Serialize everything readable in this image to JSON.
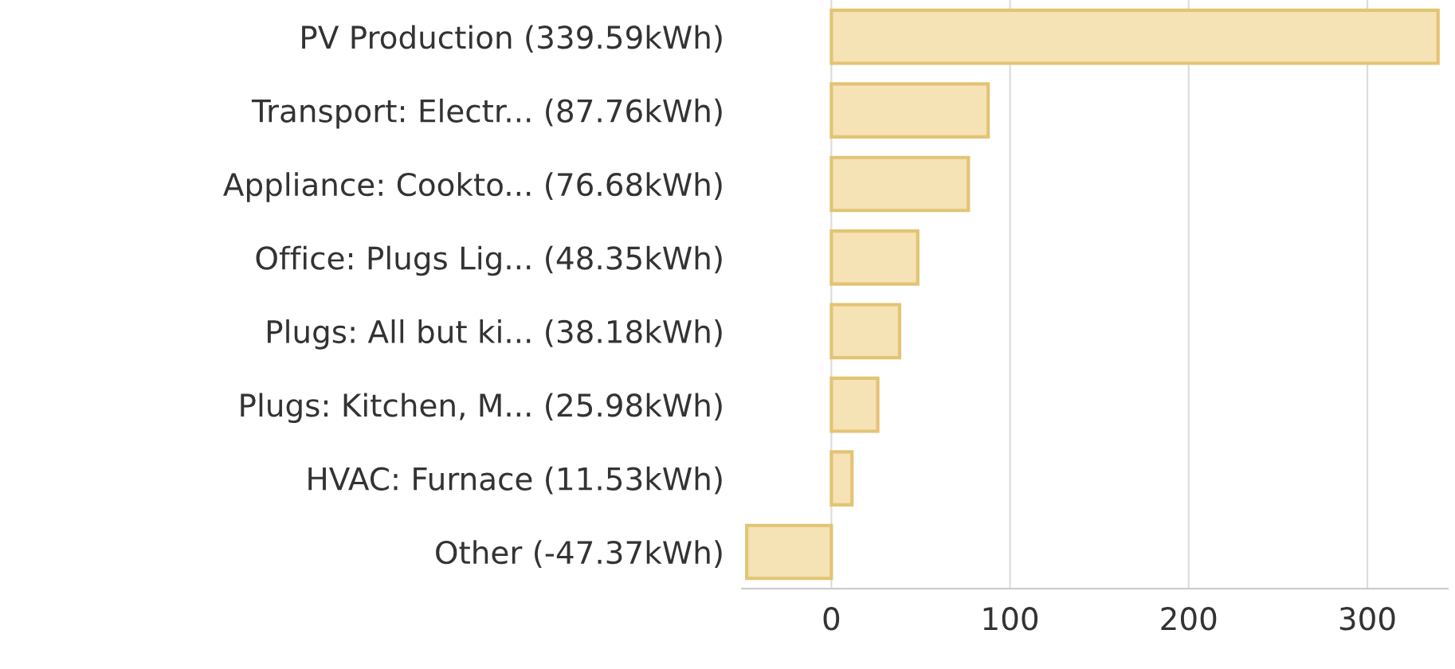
{
  "chart_data": {
    "type": "bar",
    "orientation": "horizontal",
    "categories": [
      "PV Production (339.59kWh)",
      "Transport: Electr... (87.76kWh)",
      "Appliance: Cookto... (76.68kWh)",
      "Office: Plugs Lig... (48.35kWh)",
      "Plugs: All but ki... (38.18kWh)",
      "Plugs: Kitchen, M... (25.98kWh)",
      "HVAC: Furnace (11.53kWh)",
      "Other (-47.37kWh)"
    ],
    "values": [
      339.59,
      87.76,
      76.68,
      48.35,
      38.18,
      25.98,
      11.53,
      -47.37
    ],
    "color": "#f5e3b5",
    "xlim": [
      -50,
      345
    ],
    "xticks": [
      0,
      100,
      200,
      300
    ],
    "grid": "x"
  }
}
